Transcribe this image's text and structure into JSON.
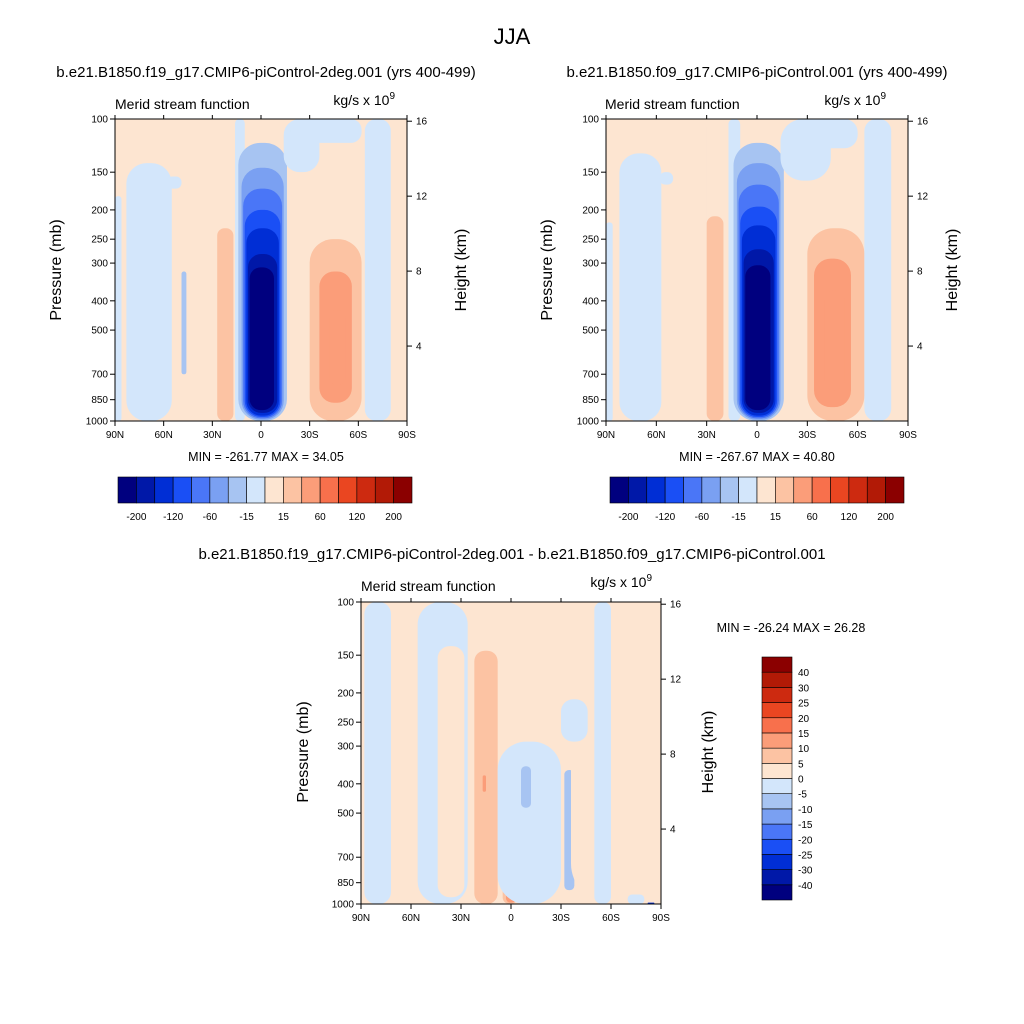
{
  "figure": {
    "season_title": "JJA"
  },
  "chart_data": [
    {
      "type": "heatmap",
      "id": "panel-f19",
      "title": "b.e21.B1850.f19_g17.CMIP6-piControl-2deg.001 (yrs 400-499)",
      "left_label": "Merid stream function",
      "units": "kg/s x 10",
      "units_exp": "9",
      "ylabel": "Pressure (mb)",
      "ylabel_right": "Height (km)",
      "x_ticks": [
        "90N",
        "60N",
        "30N",
        "0",
        "30S",
        "60S",
        "90S"
      ],
      "x_values": [
        90,
        60,
        30,
        0,
        -30,
        -60,
        -90
      ],
      "xlim": [
        90,
        -90
      ],
      "y_ticks": [
        100,
        150,
        200,
        250,
        300,
        400,
        500,
        700,
        850,
        1000
      ],
      "ylim": [
        100,
        1000
      ],
      "y_scale": "log",
      "height_ticks": [
        4,
        8,
        12,
        16
      ],
      "stats": "MIN = -261.77  MAX =  34.05",
      "min": -261.77,
      "max": 34.05,
      "levels": [
        -200,
        -160,
        -120,
        -80,
        -60,
        -40,
        -15,
        0,
        15,
        40,
        60,
        80,
        120,
        160,
        200
      ],
      "colorbar_labels": [
        -200,
        -120,
        -60,
        -15,
        15,
        60,
        120,
        200
      ],
      "colorbar_orientation": "horizontal",
      "colors": [
        "#00007f",
        "#0018a8",
        "#002ed5",
        "#1a4ff5",
        "#4a76f7",
        "#7aa0f2",
        "#a7c4f2",
        "#d3e6fb",
        "#fde5d1",
        "#fcc3a3",
        "#fb9d79",
        "#f8704c",
        "#ea4621",
        "#cd2a10",
        "#b21a06",
        "#8b0000"
      ],
      "cells": [
        {
          "x": [
            90,
            86
          ],
          "p": [
            180,
            1000
          ],
          "v": -8
        },
        {
          "x": [
            83,
            55
          ],
          "p": [
            140,
            1000
          ],
          "v": -8
        },
        {
          "x": [
            49,
            46
          ],
          "p": [
            320,
            700
          ],
          "v": -20
        },
        {
          "x": [
            48,
            47
          ],
          "p": [
            460,
            620
          ],
          "v": -25
        },
        {
          "x": [
            58,
            49
          ],
          "p": [
            155,
            170
          ],
          "v": -8
        },
        {
          "x": [
            42,
            30
          ],
          "p": [
            100,
            1000
          ],
          "v": 5
        },
        {
          "x": [
            27,
            17
          ],
          "p": [
            230,
            1000
          ],
          "v": 20
        },
        {
          "x": [
            16,
            10
          ],
          "p": [
            100,
            1000
          ],
          "v": -8
        },
        {
          "x": [
            14,
            -16
          ],
          "p": [
            120,
            1000
          ],
          "v": -25
        },
        {
          "x": [
            12,
            -14
          ],
          "p": [
            145,
            990
          ],
          "v": -45
        },
        {
          "x": [
            11,
            -13
          ],
          "p": [
            170,
            980
          ],
          "v": -70
        },
        {
          "x": [
            10,
            -12
          ],
          "p": [
            200,
            970
          ],
          "v": -100
        },
        {
          "x": [
            9,
            -11
          ],
          "p": [
            230,
            960
          ],
          "v": -140
        },
        {
          "x": [
            8,
            -10
          ],
          "p": [
            280,
            940
          ],
          "v": -180
        },
        {
          "x": [
            7,
            -8
          ],
          "p": [
            310,
            920
          ],
          "v": -220
        },
        {
          "x": [
            -14,
            -36
          ],
          "p": [
            100,
            150
          ],
          "v": -8
        },
        {
          "x": [
            -18,
            -62
          ],
          "p": [
            100,
            120
          ],
          "v": -8
        },
        {
          "x": [
            -30,
            -62
          ],
          "p": [
            250,
            1000
          ],
          "v": 20
        },
        {
          "x": [
            -36,
            -56
          ],
          "p": [
            320,
            870
          ],
          "v": 45
        },
        {
          "x": [
            -42,
            -52
          ],
          "p": [
            430,
            760
          ],
          "v": 55
        },
        {
          "x": [
            -64,
            -80
          ],
          "p": [
            100,
            1000
          ],
          "v": -8
        },
        {
          "x": [
            -84,
            -90
          ],
          "p": [
            100,
            1000
          ],
          "v": 5
        }
      ]
    },
    {
      "type": "heatmap",
      "id": "panel-f09",
      "title": "b.e21.B1850.f09_g17.CMIP6-piControl.001 (yrs 400-499)",
      "left_label": "Merid stream function",
      "units": "kg/s x 10",
      "units_exp": "9",
      "ylabel": "Pressure (mb)",
      "ylabel_right": "Height (km)",
      "x_ticks": [
        "90N",
        "60N",
        "30N",
        "0",
        "30S",
        "60S",
        "90S"
      ],
      "x_values": [
        90,
        60,
        30,
        0,
        -30,
        -60,
        -90
      ],
      "xlim": [
        90,
        -90
      ],
      "y_ticks": [
        100,
        150,
        200,
        250,
        300,
        400,
        500,
        700,
        850,
        1000
      ],
      "ylim": [
        100,
        1000
      ],
      "y_scale": "log",
      "height_ticks": [
        4,
        8,
        12,
        16
      ],
      "stats": "MIN = -267.67  MAX =  40.80",
      "min": -267.67,
      "max": 40.8,
      "levels": [
        -200,
        -160,
        -120,
        -80,
        -60,
        -40,
        -15,
        0,
        15,
        40,
        60,
        80,
        120,
        160,
        200
      ],
      "colorbar_labels": [
        -200,
        -120,
        -60,
        -15,
        15,
        60,
        120,
        200
      ],
      "colorbar_orientation": "horizontal",
      "colors": [
        "#00007f",
        "#0018a8",
        "#002ed5",
        "#1a4ff5",
        "#4a76f7",
        "#7aa0f2",
        "#a7c4f2",
        "#d3e6fb",
        "#fde5d1",
        "#fcc3a3",
        "#fb9d79",
        "#f8704c",
        "#ea4621",
        "#cd2a10",
        "#b21a06",
        "#8b0000"
      ],
      "cells": [
        {
          "x": [
            90,
            86
          ],
          "p": [
            220,
            1000
          ],
          "v": -8
        },
        {
          "x": [
            82,
            57
          ],
          "p": [
            130,
            1000
          ],
          "v": -8
        },
        {
          "x": [
            58,
            50
          ],
          "p": [
            150,
            165
          ],
          "v": -8
        },
        {
          "x": [
            40,
            30
          ],
          "p": [
            100,
            1000
          ],
          "v": 5
        },
        {
          "x": [
            30,
            20
          ],
          "p": [
            210,
            1000
          ],
          "v": 20
        },
        {
          "x": [
            17,
            10
          ],
          "p": [
            100,
            1000
          ],
          "v": -8
        },
        {
          "x": [
            14,
            -16
          ],
          "p": [
            120,
            1000
          ],
          "v": -25
        },
        {
          "x": [
            12,
            -14
          ],
          "p": [
            140,
            990
          ],
          "v": -45
        },
        {
          "x": [
            11,
            -13
          ],
          "p": [
            165,
            980
          ],
          "v": -70
        },
        {
          "x": [
            10,
            -12
          ],
          "p": [
            195,
            970
          ],
          "v": -100
        },
        {
          "x": [
            9,
            -11
          ],
          "p": [
            225,
            960
          ],
          "v": -140
        },
        {
          "x": [
            8,
            -10
          ],
          "p": [
            270,
            940
          ],
          "v": -180
        },
        {
          "x": [
            7,
            -8
          ],
          "p": [
            305,
            920
          ],
          "v": -220
        },
        {
          "x": [
            -14,
            -44
          ],
          "p": [
            100,
            160
          ],
          "v": -8
        },
        {
          "x": [
            -24,
            -60
          ],
          "p": [
            100,
            125
          ],
          "v": -8
        },
        {
          "x": [
            -30,
            -64
          ],
          "p": [
            230,
            1000
          ],
          "v": 20
        },
        {
          "x": [
            -34,
            -56
          ],
          "p": [
            290,
            900
          ],
          "v": 45
        },
        {
          "x": [
            -40,
            -52
          ],
          "p": [
            370,
            790
          ],
          "v": 55
        },
        {
          "x": [
            -68,
            -74
          ],
          "p": [
            470,
            720
          ],
          "v": -20
        },
        {
          "x": [
            -64,
            -80
          ],
          "p": [
            100,
            1000
          ],
          "v": -8
        },
        {
          "x": [
            -82,
            -90
          ],
          "p": [
            100,
            1000
          ],
          "v": 5
        }
      ]
    },
    {
      "type": "heatmap",
      "id": "panel-diff",
      "title": "b.e21.B1850.f19_g17.CMIP6-piControl-2deg.001 - b.e21.B1850.f09_g17.CMIP6-piControl.001",
      "left_label": "Merid stream function",
      "units": "kg/s x 10",
      "units_exp": "9",
      "ylabel": "Pressure (mb)",
      "ylabel_right": "Height (km)",
      "x_ticks": [
        "90N",
        "60N",
        "30N",
        "0",
        "30S",
        "60S",
        "90S"
      ],
      "x_values": [
        90,
        60,
        30,
        0,
        -30,
        -60,
        -90
      ],
      "xlim": [
        90,
        -90
      ],
      "y_ticks": [
        100,
        150,
        200,
        250,
        300,
        400,
        500,
        700,
        850,
        1000
      ],
      "ylim": [
        100,
        1000
      ],
      "y_scale": "log",
      "height_ticks": [
        4,
        8,
        12,
        16
      ],
      "stats": "MIN = -26.24  MAX =  26.28",
      "min": -26.24,
      "max": 26.28,
      "levels": [
        -40,
        -30,
        -25,
        -20,
        -15,
        -10,
        -5,
        0,
        5,
        10,
        15,
        20,
        25,
        30,
        40
      ],
      "colorbar_labels": [
        40,
        30,
        25,
        20,
        15,
        10,
        5,
        0,
        -5,
        -10,
        -15,
        -20,
        -25,
        -30,
        -40
      ],
      "colorbar_orientation": "vertical",
      "colors": [
        "#00007f",
        "#0018a8",
        "#002ed5",
        "#1a4ff5",
        "#4a76f7",
        "#7aa0f2",
        "#a7c4f2",
        "#d3e6fb",
        "#fde5d1",
        "#fcc3a3",
        "#fb9d79",
        "#f8704c",
        "#ea4621",
        "#cd2a10",
        "#b21a06",
        "#8b0000"
      ],
      "cells": [
        {
          "x": [
            88,
            72
          ],
          "p": [
            100,
            1000
          ],
          "v": -3
        },
        {
          "x": [
            70,
            58
          ],
          "p": [
            100,
            1000
          ],
          "v": 3
        },
        {
          "x": [
            56,
            26
          ],
          "p": [
            100,
            1000
          ],
          "v": -3
        },
        {
          "x": [
            44,
            28
          ],
          "p": [
            140,
            950
          ],
          "v": 3
        },
        {
          "x": [
            22,
            8
          ],
          "p": [
            145,
            1000
          ],
          "v": 7
        },
        {
          "x": [
            17,
            15
          ],
          "p": [
            375,
            425
          ],
          "v": 12
        },
        {
          "x": [
            5,
            -4
          ],
          "p": [
            520,
            1000
          ],
          "v": 9
        },
        {
          "x": [
            3,
            -3
          ],
          "p": [
            660,
            990
          ],
          "v": 13
        },
        {
          "x": [
            2,
            -2
          ],
          "p": [
            780,
            960
          ],
          "v": 18
        },
        {
          "x": [
            8,
            -30
          ],
          "p": [
            290,
            1000
          ],
          "v": -3
        },
        {
          "x": [
            -6,
            -12
          ],
          "p": [
            350,
            480
          ],
          "v": -7
        },
        {
          "x": [
            -32,
            -38
          ],
          "p": [
            360,
            900
          ],
          "v": -7
        },
        {
          "x": [
            -36,
            -90
          ],
          "p": [
            100,
            1000
          ],
          "v": 3
        },
        {
          "x": [
            -30,
            -46
          ],
          "p": [
            210,
            290
          ],
          "v": -3
        },
        {
          "x": [
            -50,
            -60
          ],
          "p": [
            100,
            1000
          ],
          "v": -3
        },
        {
          "x": [
            -70,
            -80
          ],
          "p": [
            930,
            1000
          ],
          "v": -3
        },
        {
          "x": [
            -82,
            -86
          ],
          "p": [
            990,
            1000
          ],
          "v": -28
        }
      ]
    }
  ]
}
